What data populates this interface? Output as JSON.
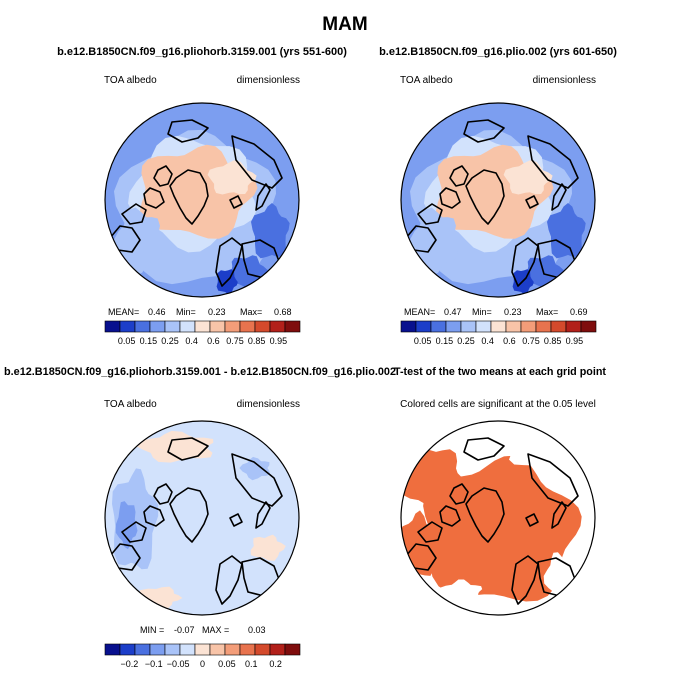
{
  "figure": {
    "title": "MAM"
  },
  "panels": [
    {
      "title": "b.e12.B1850CN.f09_g16.pliohorb.3159.001 (yrs 551-600)",
      "left_label": "TOA albedo",
      "right_label": "dimensionless",
      "stats": {
        "mean_label": "MEAN=",
        "mean": "0.46",
        "min_label": "Min=",
        "min": "0.23",
        "max_label": "Max=",
        "max": "0.68"
      },
      "palette": "albedo"
    },
    {
      "title": "b.e12.B1850CN.f09_g16.plio.002 (yrs 601-650)",
      "left_label": "TOA albedo",
      "right_label": "dimensionless",
      "stats": {
        "mean_label": "MEAN=",
        "mean": "0.47",
        "min_label": "Min=",
        "min": "0.23",
        "max_label": "Max=",
        "max": "0.69"
      },
      "palette": "albedo"
    },
    {
      "title": "b.e12.B1850CN.f09_g16.pliohorb.3159.001 - b.e12.B1850CN.f09_g16.plio.002",
      "left_label": "TOA albedo",
      "right_label": "dimensionless",
      "stats": {
        "min_label": "MIN =",
        "min": "-0.07",
        "max_label": "MAX =",
        "max": "0.03"
      },
      "palette": "diff"
    },
    {
      "title": "T-test of the two means at each grid point",
      "subtitle": "Colored cells are significant at the 0.05 level",
      "palette": "ttest"
    }
  ],
  "chart_data": [
    {
      "type": "heatmap",
      "title": "b.e12.B1850CN.f09_g16.pliohorb.3159.001 (yrs 551-600)",
      "variable": "TOA albedo",
      "units": "dimensionless",
      "mean": 0.46,
      "min": 0.23,
      "max": 0.68,
      "colorbar_levels": [
        0.05,
        0.15,
        0.25,
        0.4,
        0.6,
        0.75,
        0.85,
        0.95
      ],
      "colorbar_colors": [
        "#08108e",
        "#1c3ec9",
        "#4a70e0",
        "#7c9ef0",
        "#a9c3f8",
        "#d2e2fc",
        "#fbe3d4",
        "#f8c4a8",
        "#f39d79",
        "#e8734e",
        "#d44a2c",
        "#b2201a",
        "#7f0d0d"
      ]
    },
    {
      "type": "heatmap",
      "title": "b.e12.B1850CN.f09_g16.plio.002 (yrs 601-650)",
      "variable": "TOA albedo",
      "units": "dimensionless",
      "mean": 0.47,
      "min": 0.23,
      "max": 0.69,
      "colorbar_levels": [
        0.05,
        0.15,
        0.25,
        0.4,
        0.6,
        0.75,
        0.85,
        0.95
      ],
      "colorbar_colors": [
        "#08108e",
        "#1c3ec9",
        "#4a70e0",
        "#7c9ef0",
        "#a9c3f8",
        "#d2e2fc",
        "#fbe3d4",
        "#f8c4a8",
        "#f39d79",
        "#e8734e",
        "#d44a2c",
        "#b2201a",
        "#7f0d0d"
      ]
    },
    {
      "type": "heatmap",
      "title": "b.e12.B1850CN.f09_g16.pliohorb.3159.001 - b.e12.B1850CN.f09_g16.plio.002",
      "variable": "TOA albedo",
      "units": "dimensionless",
      "min": -0.07,
      "max": 0.03,
      "colorbar_levels": [
        -0.2,
        -0.1,
        -0.05,
        0,
        0.05,
        0.1,
        0.2
      ],
      "colorbar_labels": [
        "−0.2",
        "−0.1",
        "−0.05",
        "0",
        "0.05",
        "0.1",
        "0.2"
      ],
      "colorbar_colors": [
        "#08108e",
        "#1c3ec9",
        "#4a70e0",
        "#7c9ef0",
        "#a9c3f8",
        "#d2e2fc",
        "#fbe3d4",
        "#f8c4a8",
        "#f39d79",
        "#e8734e",
        "#d44a2c",
        "#b2201a",
        "#7f0d0d"
      ]
    },
    {
      "type": "heatmap",
      "title": "T-test of the two means at each grid point",
      "note": "Colored cells are significant at the 0.05 level",
      "significant_color": "#ef6e3e"
    }
  ],
  "colors": {
    "land_outline": "#000000",
    "ocean_blue": "#7c9ef0",
    "pale_blue": "#d2e2fc",
    "salmon": "#f8c4a8",
    "ttest_orange": "#ef6e3e"
  }
}
